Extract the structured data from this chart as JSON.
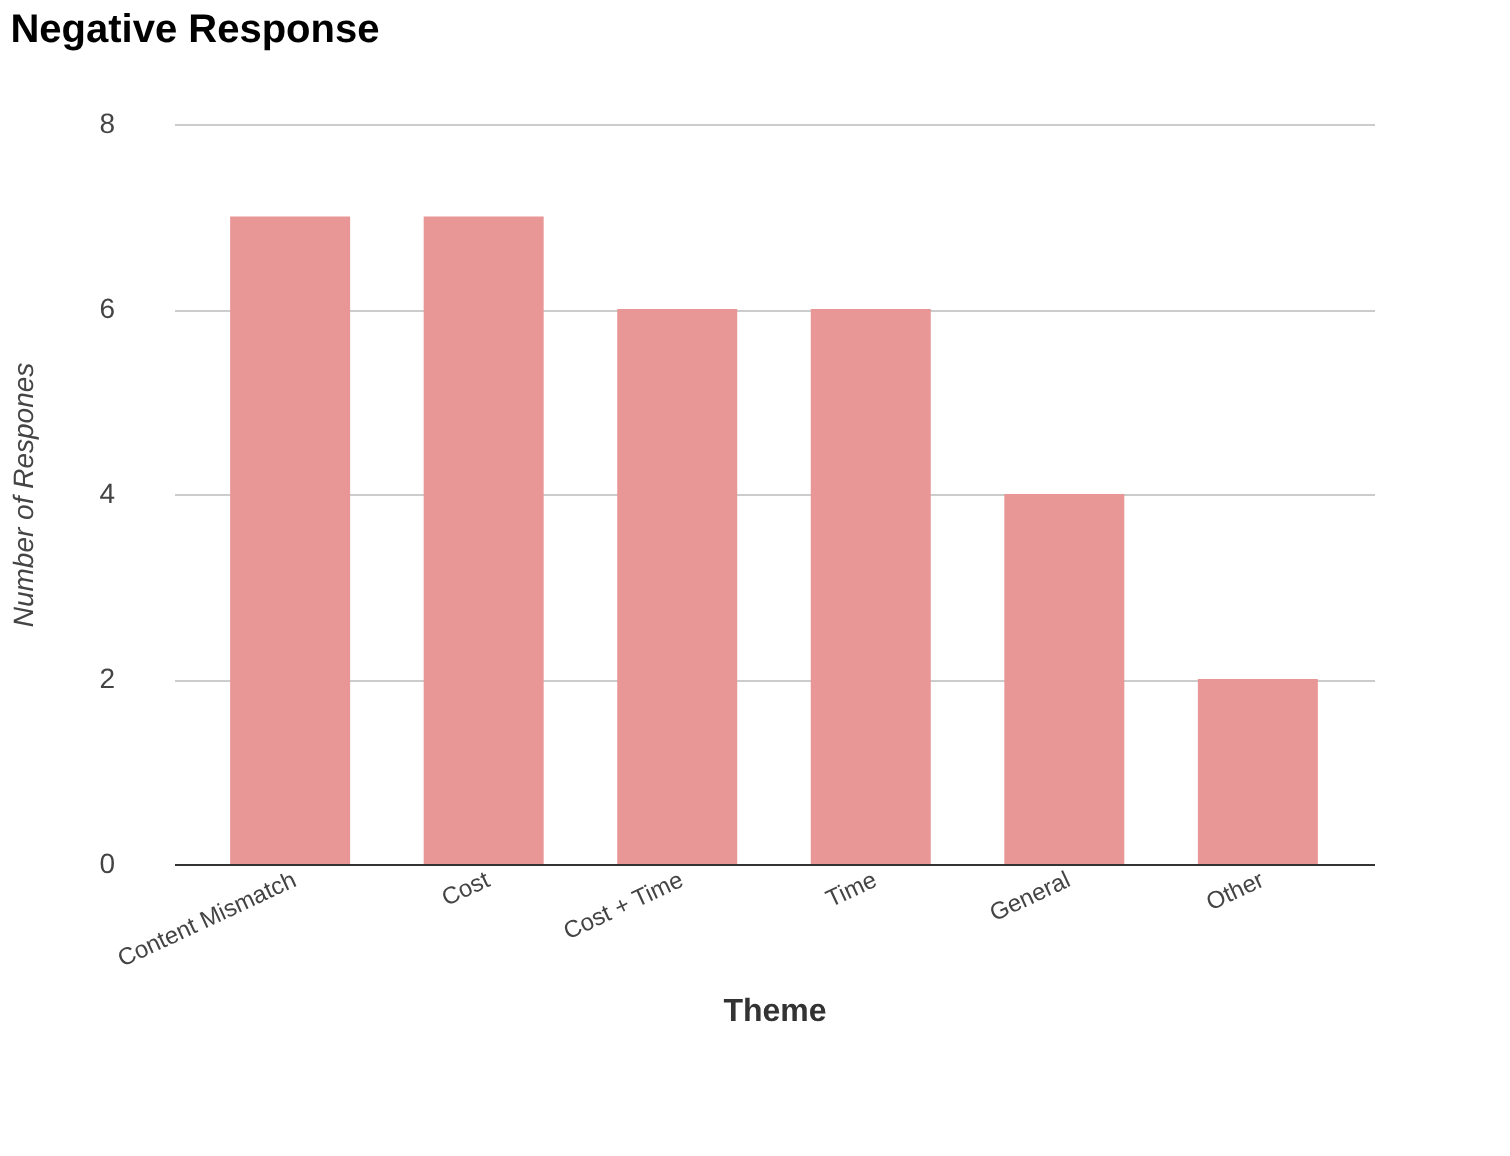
{
  "chart_data": {
    "type": "bar",
    "title": "Negative Response",
    "xlabel": "Theme",
    "ylabel": "Number of Respones",
    "categories": [
      "Content Mismatch",
      "Cost",
      "Cost + Time",
      "Time",
      "General",
      "Other"
    ],
    "values": [
      7,
      7,
      6,
      6,
      4,
      2
    ],
    "color": "#e99796",
    "ylim": [
      0,
      8
    ],
    "yticks": [
      0,
      2,
      4,
      6,
      8
    ],
    "grid": "y"
  }
}
